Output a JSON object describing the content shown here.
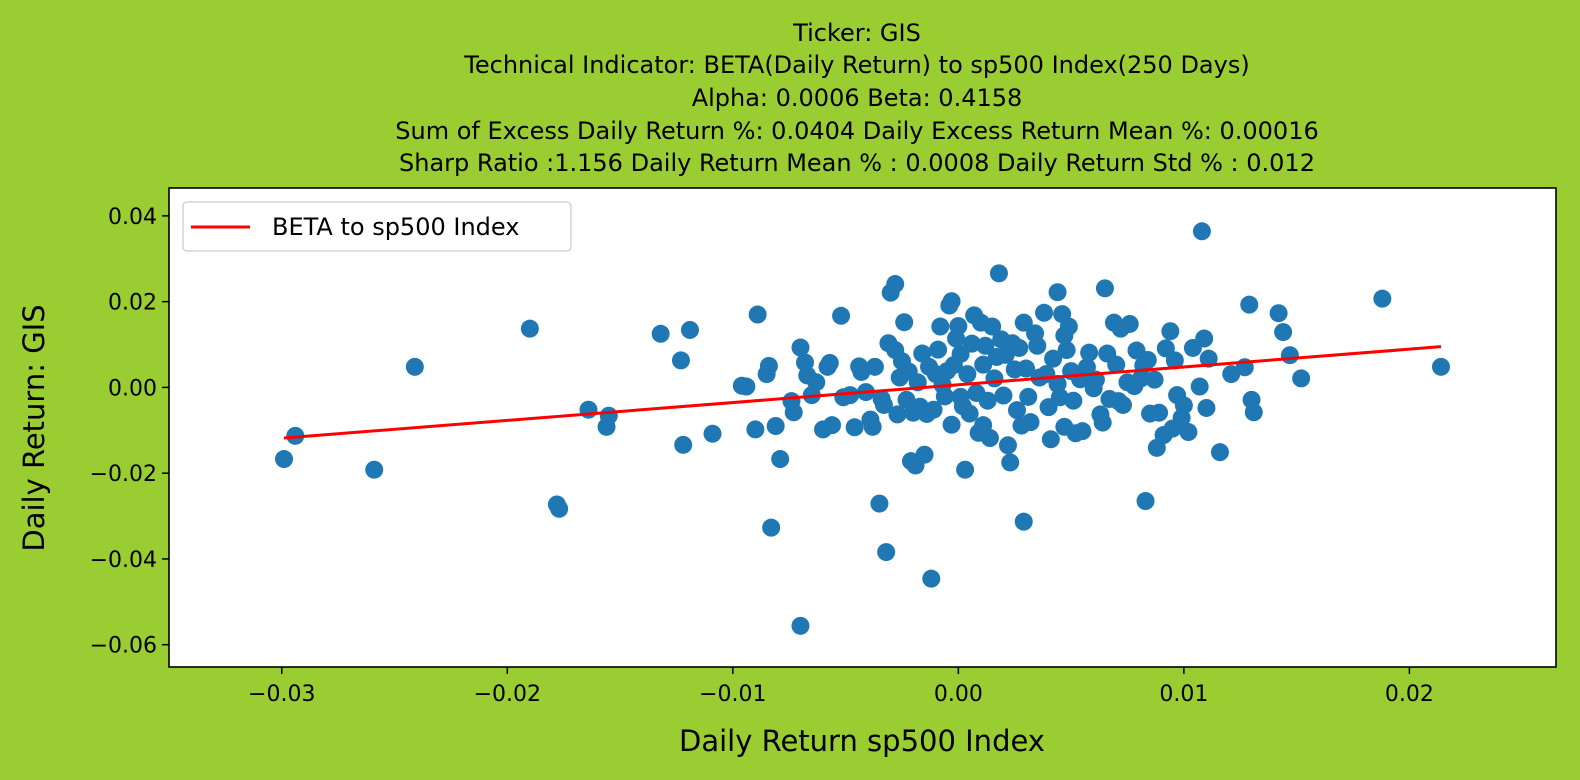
{
  "page": {
    "background": "#9acd32"
  },
  "titles": [
    "Ticker: GIS",
    "Technical Indicator: BETA(Daily Return) to sp500 Index(250 Days)",
    "Alpha: 0.0006   Beta: 0.4158",
    "Sum of Excess Daily Return %: 0.0404   Daily Excess Return Mean %: 0.00016",
    "Sharp Ratio :1.156    Daily Return Mean % : 0.0008    Daily Return Std % : 0.012"
  ],
  "chart_data": {
    "type": "scatter",
    "xlabel": "Daily Return sp500 Index",
    "ylabel": "Daily Return: GIS",
    "xlim": [
      -0.035,
      0.0265
    ],
    "ylim": [
      -0.0652,
      0.0465
    ],
    "xticks": [
      -0.03,
      -0.02,
      -0.01,
      0.0,
      0.01,
      0.02
    ],
    "xtick_labels": [
      "−0.03",
      "−0.02",
      "−0.01",
      "0.00",
      "0.01",
      "0.02"
    ],
    "yticks": [
      0.04,
      0.02,
      0.0,
      -0.02,
      -0.04,
      -0.06
    ],
    "ytick_labels": [
      "0.04",
      "0.02",
      "0.00",
      "−0.02",
      "−0.04",
      "−0.06"
    ],
    "grid": false,
    "legend": {
      "position": "top-left",
      "entries": [
        "BETA to sp500 Index"
      ]
    },
    "series": [
      {
        "kind": "points",
        "color": "#1f77b4",
        "points": [
          [
            -0.0299,
            -0.0167
          ],
          [
            -0.0294,
            -0.0113
          ],
          [
            -0.0259,
            -0.0192
          ],
          [
            -0.0241,
            0.0048
          ],
          [
            -0.019,
            0.0137
          ],
          [
            -0.0178,
            -0.0273
          ],
          [
            -0.0177,
            -0.0283
          ],
          [
            -0.0164,
            -0.0052
          ],
          [
            -0.0156,
            -0.0092
          ],
          [
            -0.0155,
            -0.0066
          ],
          [
            -0.0132,
            0.0125
          ],
          [
            -0.0123,
            0.0063
          ],
          [
            -0.0122,
            -0.0134
          ],
          [
            -0.0119,
            0.0134
          ],
          [
            -0.0109,
            -0.0108
          ],
          [
            -0.0096,
            0.0004
          ],
          [
            -0.0094,
            0.0002
          ],
          [
            -0.009,
            -0.0098
          ],
          [
            -0.0089,
            0.017
          ],
          [
            -0.0085,
            0.0031
          ],
          [
            -0.0084,
            0.005
          ],
          [
            -0.0083,
            -0.0327
          ],
          [
            -0.0081,
            -0.009
          ],
          [
            -0.0079,
            -0.0167
          ],
          [
            -0.0074,
            -0.0032
          ],
          [
            -0.0073,
            -0.0058
          ],
          [
            -0.007,
            -0.0556
          ],
          [
            -0.007,
            0.0093
          ],
          [
            -0.0068,
            0.0058
          ],
          [
            -0.0067,
            0.0028
          ],
          [
            -0.0065,
            -0.0018
          ],
          [
            -0.0063,
            0.0012
          ],
          [
            -0.006,
            -0.0098
          ],
          [
            -0.0058,
            0.0048
          ],
          [
            -0.0057,
            0.0057
          ],
          [
            -0.0056,
            -0.0088
          ],
          [
            -0.0052,
            0.0167
          ],
          [
            -0.0051,
            -0.0023
          ],
          [
            -0.0048,
            -0.0018
          ],
          [
            -0.0046,
            -0.0093
          ],
          [
            -0.0044,
            0.0049
          ],
          [
            -0.0043,
            0.0036
          ],
          [
            -0.0041,
            -0.0011
          ],
          [
            -0.0039,
            -0.0075
          ],
          [
            -0.0038,
            -0.0092
          ],
          [
            -0.0037,
            0.0048
          ],
          [
            -0.0035,
            -0.0271
          ],
          [
            -0.0034,
            -0.0027
          ],
          [
            -0.0033,
            -0.0041
          ],
          [
            -0.0032,
            -0.0384
          ],
          [
            -0.0031,
            0.0103
          ],
          [
            -0.003,
            0.0221
          ],
          [
            -0.0028,
            0.0241
          ],
          [
            -0.0028,
            0.0087
          ],
          [
            -0.0027,
            -0.0063
          ],
          [
            -0.0026,
            0.0023
          ],
          [
            -0.0025,
            0.0061
          ],
          [
            -0.0024,
            0.0152
          ],
          [
            -0.0023,
            -0.0029
          ],
          [
            -0.0022,
            0.0037
          ],
          [
            -0.0021,
            -0.0172
          ],
          [
            -0.002,
            -0.0059
          ],
          [
            -0.0019,
            -0.0182
          ],
          [
            -0.0018,
            0.0012
          ],
          [
            -0.0017,
            -0.0045
          ],
          [
            -0.0016,
            0.0079
          ],
          [
            -0.0015,
            -0.0157
          ],
          [
            -0.0014,
            -0.0062
          ],
          [
            -0.0013,
            0.0048
          ],
          [
            -0.0012,
            -0.0446
          ],
          [
            -0.0011,
            -0.0052
          ],
          [
            -0.001,
            0.0031
          ],
          [
            -0.0009,
            0.0088
          ],
          [
            -0.0008,
            0.0142
          ],
          [
            -0.0007,
            0.0006
          ],
          [
            -0.0006,
            -0.0021
          ],
          [
            -0.0005,
            0.0038
          ],
          [
            -0.0004,
            0.0191
          ],
          [
            -0.0003,
            0.0201
          ],
          [
            -0.0003,
            -0.0087
          ],
          [
            -0.0002,
            0.0052
          ],
          [
            -0.0001,
            0.0114
          ],
          [
            0.0,
            0.0143
          ],
          [
            0.0001,
            -0.0022
          ],
          [
            0.0001,
            0.0078
          ],
          [
            0.0002,
            -0.0044
          ],
          [
            0.0003,
            -0.0192
          ],
          [
            0.0004,
            0.0031
          ],
          [
            0.0005,
            -0.0061
          ],
          [
            0.0006,
            0.0102
          ],
          [
            0.0007,
            0.0168
          ],
          [
            0.0008,
            -0.0013
          ],
          [
            0.0009,
            -0.0106
          ],
          [
            0.001,
            0.0151
          ],
          [
            0.0011,
            0.0053
          ],
          [
            0.0011,
            -0.0088
          ],
          [
            0.0012,
            0.0097
          ],
          [
            0.0013,
            -0.0031
          ],
          [
            0.0014,
            -0.0118
          ],
          [
            0.0015,
            0.0142
          ],
          [
            0.0016,
            0.0021
          ],
          [
            0.0017,
            0.0071
          ],
          [
            0.0018,
            0.0266
          ],
          [
            0.0019,
            0.0112
          ],
          [
            0.002,
            -0.0019
          ],
          [
            0.0021,
            0.0076
          ],
          [
            0.0022,
            -0.0135
          ],
          [
            0.0023,
            -0.0175
          ],
          [
            0.0024,
            0.0103
          ],
          [
            0.0025,
            0.0042
          ],
          [
            0.0026,
            -0.0053
          ],
          [
            0.0027,
            0.0092
          ],
          [
            0.0028,
            -0.0089
          ],
          [
            0.0029,
            -0.0313
          ],
          [
            0.0029,
            0.0151
          ],
          [
            0.003,
            0.0044
          ],
          [
            0.0031,
            -0.0022
          ],
          [
            0.0032,
            -0.0081
          ],
          [
            0.0034,
            0.0126
          ],
          [
            0.0035,
            0.0097
          ],
          [
            0.0036,
            0.0023
          ],
          [
            0.0038,
            0.0174
          ],
          [
            0.0039,
            0.0031
          ],
          [
            0.004,
            -0.0046
          ],
          [
            0.0041,
            -0.0121
          ],
          [
            0.0042,
            0.0067
          ],
          [
            0.0044,
            0.0222
          ],
          [
            0.0044,
            0.0008
          ],
          [
            0.0045,
            -0.0023
          ],
          [
            0.0046,
            0.0171
          ],
          [
            0.0047,
            0.0121
          ],
          [
            0.0047,
            -0.0092
          ],
          [
            0.0048,
            0.0087
          ],
          [
            0.0049,
            0.0142
          ],
          [
            0.005,
            0.0038
          ],
          [
            0.0051,
            -0.0031
          ],
          [
            0.0052,
            -0.0107
          ],
          [
            0.0054,
            0.0019
          ],
          [
            0.0055,
            -0.0102
          ],
          [
            0.0057,
            0.0047
          ],
          [
            0.0058,
            0.0081
          ],
          [
            0.006,
            -0.0002
          ],
          [
            0.0061,
            0.0018
          ],
          [
            0.0063,
            -0.0063
          ],
          [
            0.0064,
            -0.0082
          ],
          [
            0.0065,
            0.0231
          ],
          [
            0.0066,
            0.0079
          ],
          [
            0.0067,
            -0.0027
          ],
          [
            0.0069,
            0.0151
          ],
          [
            0.007,
            0.0053
          ],
          [
            0.0071,
            -0.0032
          ],
          [
            0.0072,
            0.0137
          ],
          [
            0.0073,
            -0.0041
          ],
          [
            0.0075,
            0.0012
          ],
          [
            0.0076,
            0.0148
          ],
          [
            0.0078,
            0.0003
          ],
          [
            0.0079,
            0.0086
          ],
          [
            0.0081,
            0.0021
          ],
          [
            0.0082,
            0.0051
          ],
          [
            0.0083,
            -0.0265
          ],
          [
            0.0084,
            0.0064
          ],
          [
            0.0085,
            -0.0061
          ],
          [
            0.0087,
            0.0018
          ],
          [
            0.0088,
            -0.0141
          ],
          [
            0.0089,
            -0.0059
          ],
          [
            0.0091,
            -0.0111
          ],
          [
            0.0092,
            0.0091
          ],
          [
            0.0094,
            0.0131
          ],
          [
            0.0095,
            -0.0096
          ],
          [
            0.0096,
            0.0063
          ],
          [
            0.0097,
            -0.0018
          ],
          [
            0.0099,
            -0.0071
          ],
          [
            0.01,
            -0.0042
          ],
          [
            0.0102,
            -0.0104
          ],
          [
            0.0104,
            0.0092
          ],
          [
            0.0107,
            0.0002
          ],
          [
            0.0108,
            0.0364
          ],
          [
            0.0109,
            0.0114
          ],
          [
            0.011,
            -0.0048
          ],
          [
            0.0111,
            0.0067
          ],
          [
            0.0116,
            -0.0151
          ],
          [
            0.0121,
            0.0031
          ],
          [
            0.0127,
            0.0047
          ],
          [
            0.0129,
            0.0193
          ],
          [
            0.013,
            -0.0029
          ],
          [
            0.0131,
            -0.0058
          ],
          [
            0.0142,
            0.0173
          ],
          [
            0.0144,
            0.0129
          ],
          [
            0.0147,
            0.0075
          ],
          [
            0.0152,
            0.0021
          ],
          [
            0.0188,
            0.0207
          ],
          [
            0.0214,
            0.0048
          ]
        ]
      },
      {
        "kind": "line",
        "name": "BETA to sp500 Index",
        "color": "#ff0000",
        "x": [
          -0.0299,
          0.0214
        ],
        "y": [
          -0.0118,
          0.0095
        ]
      }
    ]
  }
}
